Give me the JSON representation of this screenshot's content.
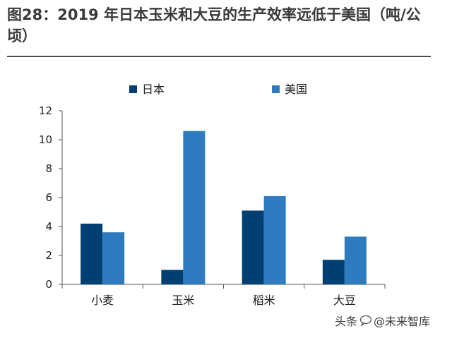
{
  "title": "图28：2019 年日本玉米和大豆的生产效率远低于美国（吨/公顷）",
  "watermark": {
    "source": "头条",
    "account": "@未来智库"
  },
  "colors": {
    "japan": "#003f72",
    "usa": "#2e7bc0",
    "axis": "#555555",
    "text": "#222222"
  },
  "chart_data": {
    "type": "bar",
    "title": "2019 年日本玉米和大豆的生产效率远低于美国（吨/公顷）",
    "categories": [
      "小麦",
      "玉米",
      "稻米",
      "大豆"
    ],
    "series": [
      {
        "name": "日本",
        "values": [
          4.2,
          1.0,
          5.1,
          1.7
        ]
      },
      {
        "name": "美国",
        "values": [
          3.6,
          10.6,
          6.1,
          3.3
        ]
      }
    ],
    "xlabel": "",
    "ylabel": "",
    "ylim": [
      0,
      12
    ],
    "yticks": [
      0,
      2,
      4,
      6,
      8,
      10,
      12
    ],
    "grid": false,
    "legend": "top-center"
  }
}
